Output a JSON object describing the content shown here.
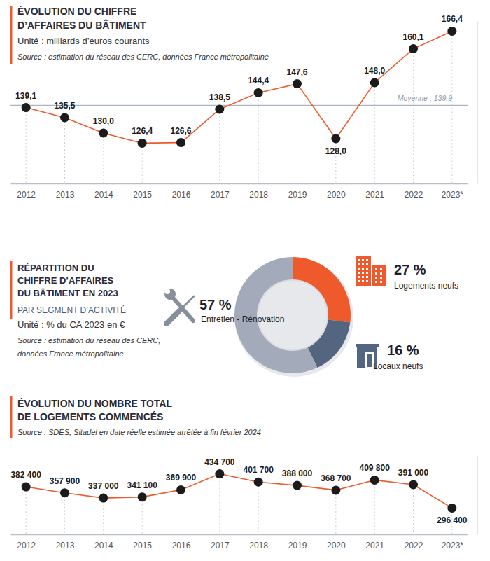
{
  "chart_data": [
    {
      "type": "line",
      "title": [
        "ÉVOLUTION DU CHIFFRE",
        "D’AFFAIRES DU BÂTIMENT"
      ],
      "subtitle": "Unité : milliards d’euros courants",
      "source": "Source : estimation du réseau des CERC, données France métropolitaine",
      "categories": [
        "2012",
        "2013",
        "2014",
        "2015",
        "2016",
        "2017",
        "2018",
        "2019",
        "2020",
        "2021",
        "2022",
        "2023*"
      ],
      "values": [
        139.1,
        135.5,
        130.0,
        126.4,
        126.6,
        138.5,
        144.4,
        147.6,
        128.0,
        148.0,
        160.1,
        166.4
      ],
      "value_labels": [
        "139,1",
        "135,5",
        "130,0",
        "126,4",
        "126,6",
        "138,5",
        "144,4",
        "147,6",
        "128,0",
        "148,0",
        "160,1",
        "166,4"
      ],
      "color": "#ee5a2b",
      "marker": "circle",
      "data_labels": true,
      "tick_labels": "x",
      "ylim": [
        112,
        170
      ],
      "average": {
        "value": 139.9,
        "label": "Moyenne : 139,9"
      }
    },
    {
      "type": "donut",
      "title": [
        "RÉPARTITION DU",
        "CHIFFRE D’AFFAIRES",
        "DU BÂTIMENT EN 2023"
      ],
      "subtitle": "PAR SEGMENT D’ACTIVITÉ",
      "unit": "Unité : % du CA 2023 en €",
      "source": [
        "Source : estimation du réseau des CERC,",
        "données France métropolitaine"
      ],
      "categories": [
        "Logements neufs",
        "Locaux neufs",
        "Entretien - Rénovation"
      ],
      "values": [
        27,
        16,
        57
      ],
      "value_labels": [
        "27 %",
        "16 %",
        "57 %"
      ],
      "colors": [
        "#ee5a2b",
        "#53657f",
        "#a3abbb"
      ],
      "data_labels": true
    },
    {
      "type": "line",
      "title": [
        "ÉVOLUTION DU NOMBRE TOTAL",
        "DE LOGEMENTS COMMENCÉS"
      ],
      "source": "Source : SDES, Sitadel en date réelle estimée arrêtée à fin février 2024",
      "categories": [
        "2012",
        "2013",
        "2014",
        "2015",
        "2016",
        "2017",
        "2018",
        "2019",
        "2020",
        "2021",
        "2022",
        "2023*"
      ],
      "values": [
        382400,
        357900,
        337000,
        341100,
        369900,
        434700,
        401700,
        388000,
        368700,
        409800,
        391000,
        296400
      ],
      "value_labels": [
        "382 400",
        "357 900",
        "337 000",
        "341 100",
        "369 900",
        "434 700",
        "401 700",
        "388 000",
        "368 700",
        "409 800",
        "391 000",
        "296 400"
      ],
      "color": "#ee5a2b",
      "marker": "circle",
      "data_labels": true,
      "tick_labels": "x",
      "ylim": [
        190000,
        510000
      ]
    }
  ]
}
